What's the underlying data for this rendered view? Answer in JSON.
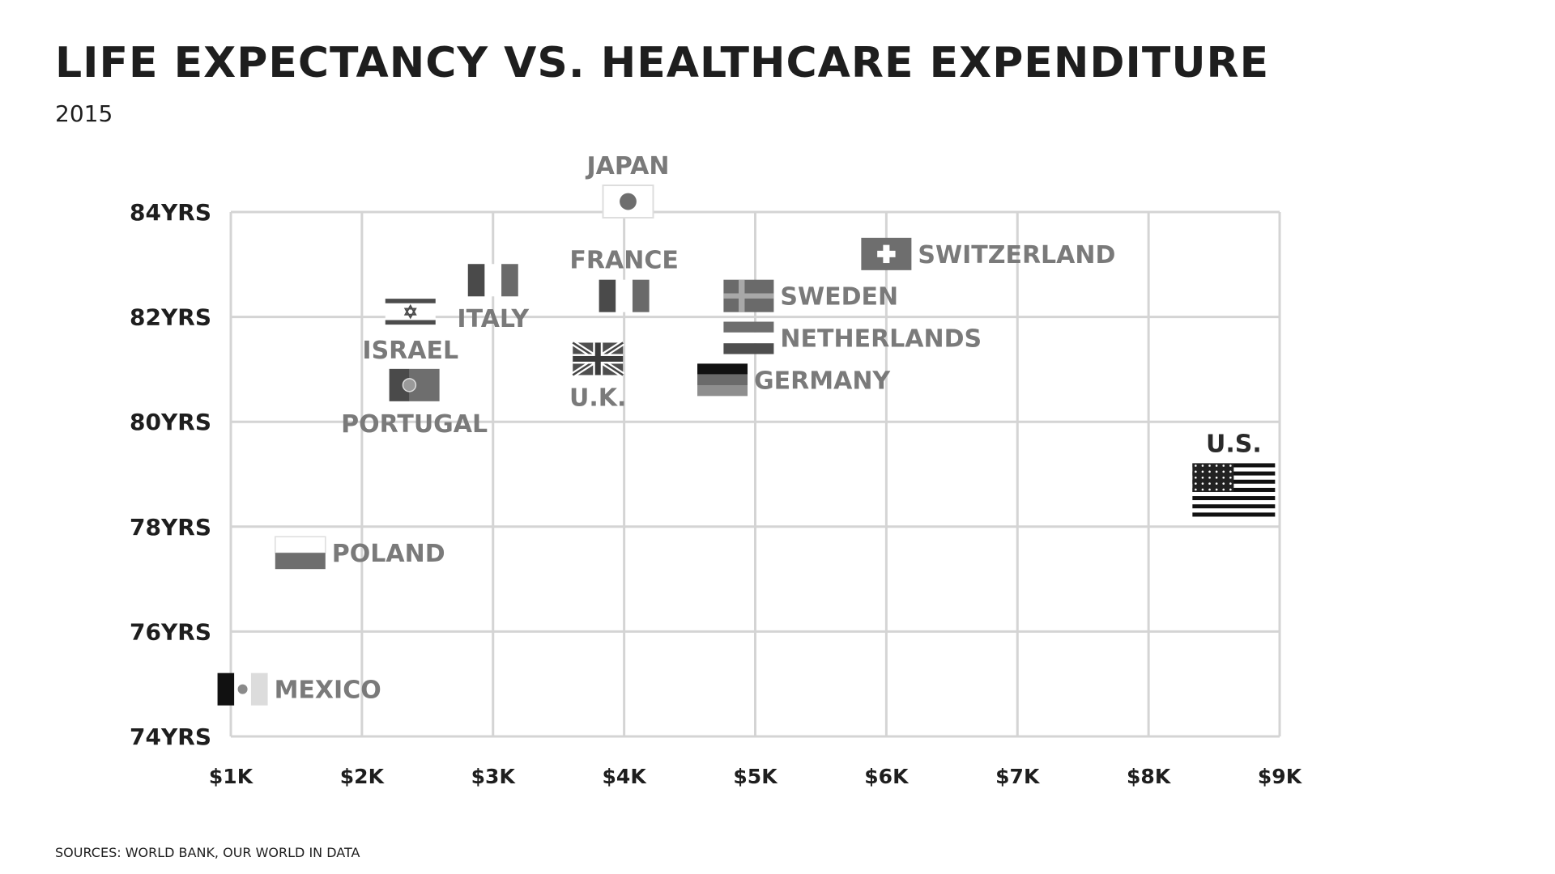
{
  "header": {
    "title": "LIFE EXPECTANCY VS. HEALTHCARE EXPENDITURE",
    "subtitle": "2015"
  },
  "footer": {
    "source": "SOURCES: WORLD BANK, OUR WORLD IN DATA"
  },
  "chart_data": {
    "type": "scatter",
    "title": "LIFE EXPECTANCY VS. HEALTHCARE EXPENDITURE",
    "subtitle": "2015",
    "xlabel": "",
    "ylabel": "",
    "xlim": [
      1000,
      9000
    ],
    "ylim": [
      74,
      84
    ],
    "grid": true,
    "x_ticks": [
      {
        "value": 1000,
        "label": "$1K"
      },
      {
        "value": 2000,
        "label": "$2K"
      },
      {
        "value": 3000,
        "label": "$3K"
      },
      {
        "value": 4000,
        "label": "$4K"
      },
      {
        "value": 5000,
        "label": "$5K"
      },
      {
        "value": 6000,
        "label": "$6K"
      },
      {
        "value": 7000,
        "label": "$7K"
      },
      {
        "value": 8000,
        "label": "$8K"
      },
      {
        "value": 9000,
        "label": "$9K"
      }
    ],
    "y_ticks": [
      {
        "value": 74,
        "label": "74YRS"
      },
      {
        "value": 76,
        "label": "76YRS"
      },
      {
        "value": 78,
        "label": "78YRS"
      },
      {
        "value": 80,
        "label": "80YRS"
      },
      {
        "value": 82,
        "label": "82YRS"
      },
      {
        "value": 84,
        "label": "84YRS"
      }
    ],
    "points": [
      {
        "label": "JAPAN",
        "x": 4030,
        "y": 84.2,
        "flag": "japan",
        "label_pos": "top"
      },
      {
        "label": "FRANCE",
        "x": 4000,
        "y": 82.4,
        "flag": "france",
        "label_pos": "top"
      },
      {
        "label": "ITALY",
        "x": 3000,
        "y": 82.7,
        "flag": "italy",
        "label_pos": "bottom"
      },
      {
        "label": "ISRAEL",
        "x": 2370,
        "y": 82.1,
        "flag": "israel",
        "label_pos": "bottom"
      },
      {
        "label": "PORTUGAL",
        "x": 2400,
        "y": 80.7,
        "flag": "portugal",
        "label_pos": "bottom"
      },
      {
        "label": "U.K.",
        "x": 3800,
        "y": 81.2,
        "flag": "uk",
        "label_pos": "bottom"
      },
      {
        "label": "SWEDEN",
        "x": 4950,
        "y": 82.4,
        "flag": "sweden",
        "label_pos": "right"
      },
      {
        "label": "NETHERLANDS",
        "x": 4950,
        "y": 81.6,
        "flag": "netherlands",
        "label_pos": "right"
      },
      {
        "label": "GERMANY",
        "x": 4750,
        "y": 80.8,
        "flag": "germany",
        "label_pos": "right"
      },
      {
        "label": "SWITZERLAND",
        "x": 6000,
        "y": 83.2,
        "flag": "switzerland",
        "label_pos": "right"
      },
      {
        "label": "U.S.",
        "x": 8650,
        "y": 78.7,
        "flag": "us",
        "label_pos": "top"
      },
      {
        "label": "POLAND",
        "x": 1530,
        "y": 77.5,
        "flag": "poland",
        "label_pos": "right"
      },
      {
        "label": "MEXICO",
        "x": 1090,
        "y": 74.9,
        "flag": "mexico",
        "label_pos": "right"
      }
    ]
  }
}
